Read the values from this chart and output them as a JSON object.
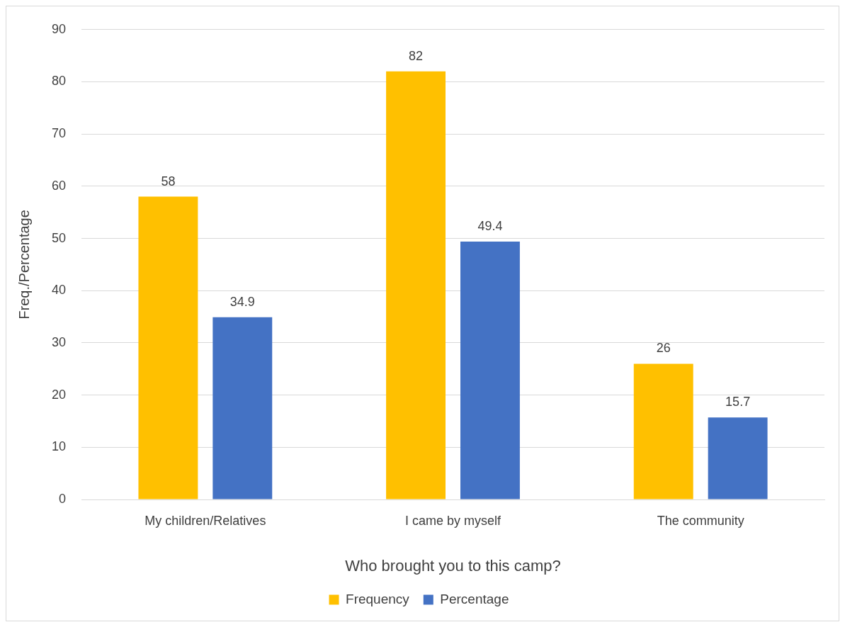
{
  "chart_data": {
    "type": "bar",
    "xlabel": "Who brought you to this camp?",
    "ylabel": "Freq./Percentage",
    "categories": [
      "My children/Relatives",
      "I came by myself",
      "The community"
    ],
    "series": [
      {
        "name": "Frequency",
        "color": "#ffc000",
        "values": [
          58,
          82,
          26
        ]
      },
      {
        "name": "Percentage",
        "color": "#4472c4",
        "values": [
          34.9,
          49.4,
          15.7
        ]
      }
    ],
    "ylim": [
      0,
      90
    ],
    "yticks": [
      0,
      10,
      20,
      30,
      40,
      50,
      60,
      70,
      80,
      90
    ],
    "grid": "y",
    "legend": "bottom",
    "data_labels": true
  }
}
